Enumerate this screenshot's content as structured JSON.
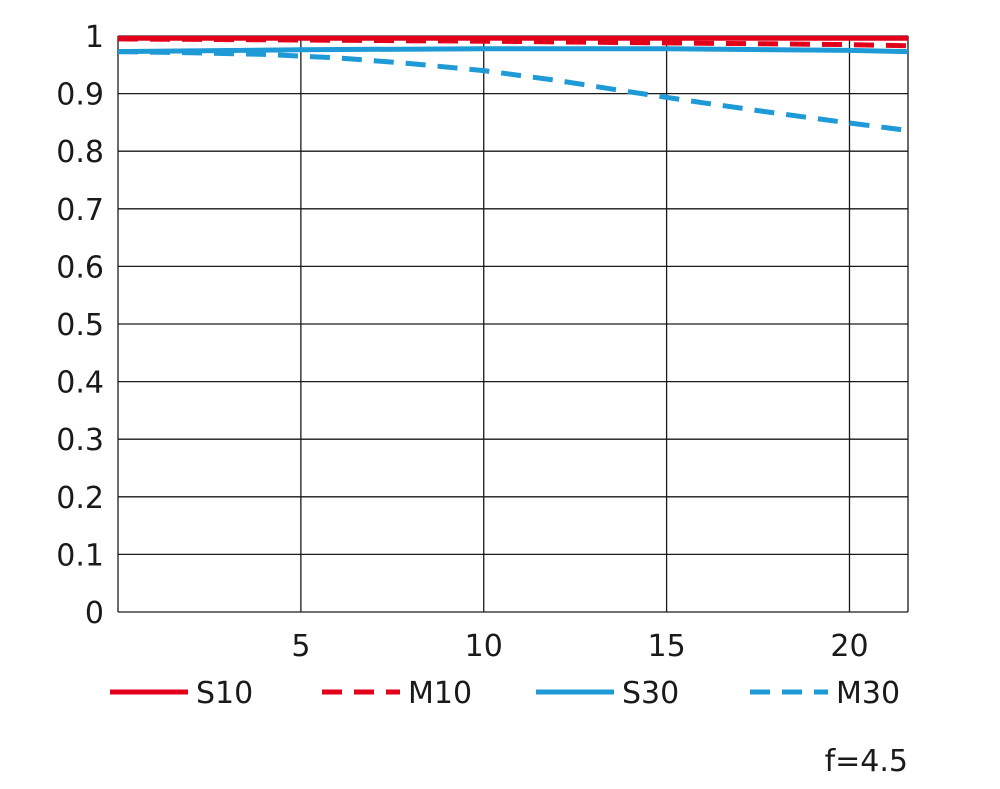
{
  "chart_data": {
    "type": "line",
    "title": "",
    "xlabel": "",
    "ylabel": "",
    "xlim": [
      0,
      21.6
    ],
    "ylim": [
      0,
      1
    ],
    "x_ticks": [
      5,
      10,
      15,
      20
    ],
    "x_tick_labels": [
      "5",
      "10",
      "15",
      "20"
    ],
    "y_ticks": [
      0,
      0.1,
      0.2,
      0.3,
      0.4,
      0.5,
      0.6,
      0.7,
      0.8,
      0.9,
      1
    ],
    "y_tick_labels": [
      "0",
      "0.1",
      "0.2",
      "0.3",
      "0.4",
      "0.5",
      "0.6",
      "0.7",
      "0.8",
      "0.9",
      "1"
    ],
    "grid": true,
    "legend_position": "bottom",
    "annotation": "f=4.5",
    "series": [
      {
        "name": "S10",
        "color": "#e3001b",
        "dash": "solid",
        "x": [
          0,
          5,
          10,
          15,
          20,
          21.6
        ],
        "y": [
          0.996,
          0.996,
          0.996,
          0.996,
          0.996,
          0.996
        ]
      },
      {
        "name": "M10",
        "color": "#e3001b",
        "dash": "dashed",
        "x": [
          0,
          5,
          10,
          15,
          20,
          21.6
        ],
        "y": [
          0.995,
          0.993,
          0.991,
          0.988,
          0.985,
          0.983
        ]
      },
      {
        "name": "S30",
        "color": "#1e9ad6",
        "dash": "solid",
        "x": [
          0,
          5,
          10,
          15,
          20,
          21.6
        ],
        "y": [
          0.973,
          0.976,
          0.978,
          0.978,
          0.975,
          0.973
        ]
      },
      {
        "name": "M30",
        "color": "#1e9ad6",
        "dash": "dashed",
        "x": [
          0,
          2,
          4,
          6,
          8,
          10,
          12,
          14,
          16,
          18,
          20,
          21.6
        ],
        "y": [
          0.973,
          0.971,
          0.968,
          0.962,
          0.952,
          0.94,
          0.923,
          0.903,
          0.884,
          0.866,
          0.849,
          0.836
        ]
      }
    ]
  }
}
